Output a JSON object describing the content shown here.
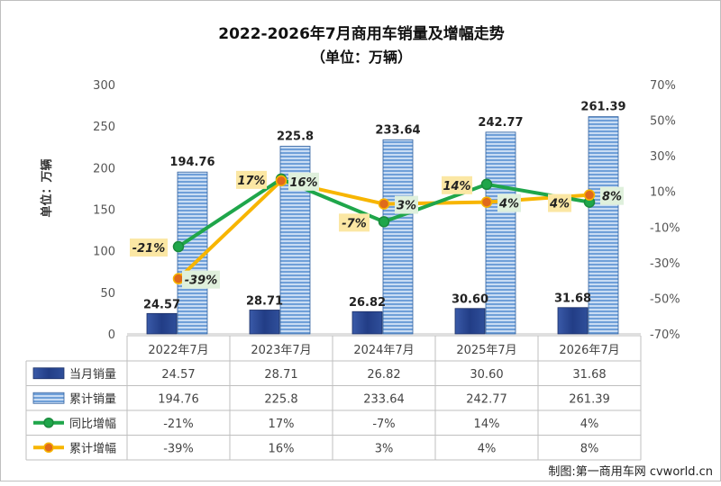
{
  "chart_data": {
    "type": "bar",
    "title": "2022-2026年7月商用车销量及增幅走势",
    "subtitle": "（单位：万辆）",
    "ylabel": "单位：万辆",
    "ylim": [
      0,
      300
    ],
    "yticks": [
      0,
      50,
      100,
      150,
      200,
      250,
      300
    ],
    "y2lim": [
      -70,
      70
    ],
    "y2ticks": [
      "70%",
      "50%",
      "30%",
      "10%",
      "-10%",
      "-30%",
      "-50%",
      "-70%"
    ],
    "categories": [
      "2022年7月",
      "2023年7月",
      "2024年7月",
      "2025年7月",
      "2026年7月"
    ],
    "series": [
      {
        "name": "当月销量",
        "type": "bar",
        "axis": "left",
        "color": "#2e4a8c",
        "values": [
          24.57,
          28.71,
          26.82,
          30.6,
          31.68
        ],
        "labels": [
          "24.57",
          "28.71",
          "26.82",
          "30.60",
          "31.68"
        ]
      },
      {
        "name": "累计销量",
        "type": "bar",
        "axis": "left",
        "color": "#5b8fd0",
        "values": [
          194.76,
          225.8,
          233.64,
          242.77,
          261.39
        ],
        "labels": [
          "194.76",
          "225.8",
          "233.64",
          "242.77",
          "261.39"
        ]
      },
      {
        "name": "同比增幅",
        "type": "line",
        "axis": "right",
        "color": "#1fa64a",
        "values": [
          -21,
          17,
          -7,
          14,
          4
        ],
        "labels": [
          "-21%",
          "17%",
          "-7%",
          "14%",
          "4%"
        ]
      },
      {
        "name": "累计增幅",
        "type": "line",
        "axis": "right",
        "color": "#f7b500",
        "values": [
          -39,
          16,
          3,
          4,
          8
        ],
        "labels": [
          "-39%",
          "16%",
          "3%",
          "4%",
          "8%"
        ]
      }
    ],
    "legend_placement": "data-table-below",
    "grid": false
  },
  "table": {
    "rows": [
      {
        "name": "当月销量",
        "cells": [
          "24.57",
          "28.71",
          "26.82",
          "30.60",
          "31.68"
        ]
      },
      {
        "name": "累计销量",
        "cells": [
          "194.76",
          "225.8",
          "233.64",
          "242.77",
          "261.39"
        ]
      },
      {
        "name": "同比增幅",
        "cells": [
          "-21%",
          "17%",
          "-7%",
          "14%",
          "4%"
        ]
      },
      {
        "name": "累计增幅",
        "cells": [
          "-39%",
          "16%",
          "3%",
          "4%",
          "8%"
        ]
      }
    ]
  },
  "credit": "制图:第一商用车网 cvworld.cn"
}
